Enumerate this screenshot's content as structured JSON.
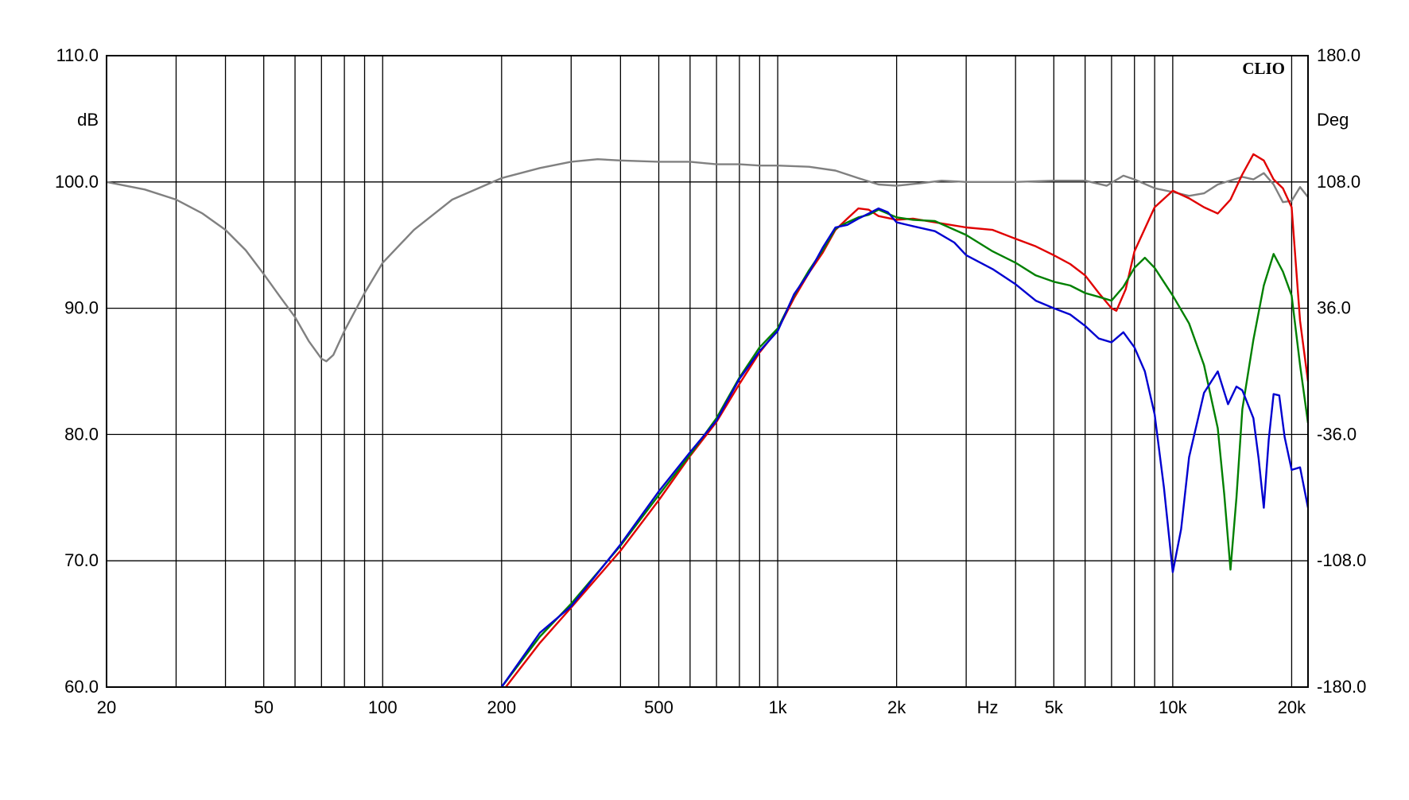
{
  "chart_data": {
    "type": "line",
    "brand": "CLIO",
    "x_axis": {
      "scale": "log",
      "range": [
        20,
        22000
      ],
      "unit_label": "Hz",
      "ticks": [
        {
          "value": 20,
          "label": "20"
        },
        {
          "value": 50,
          "label": "50"
        },
        {
          "value": 100,
          "label": "100"
        },
        {
          "value": 200,
          "label": "200"
        },
        {
          "value": 500,
          "label": "500"
        },
        {
          "value": 1000,
          "label": "1k"
        },
        {
          "value": 2000,
          "label": "2k"
        },
        {
          "value": 5000,
          "label": "5k"
        },
        {
          "value": 10000,
          "label": "10k"
        },
        {
          "value": 20000,
          "label": "20k"
        }
      ],
      "gridlines": [
        20,
        30,
        40,
        50,
        60,
        70,
        80,
        90,
        100,
        200,
        300,
        400,
        500,
        600,
        700,
        800,
        900,
        1000,
        2000,
        3000,
        4000,
        5000,
        6000,
        7000,
        8000,
        9000,
        10000,
        20000
      ]
    },
    "y_left": {
      "label": "dB",
      "range": [
        60,
        110
      ],
      "ticks": [
        {
          "value": 110,
          "label": "110.0"
        },
        {
          "value": 100,
          "label": "100.0"
        },
        {
          "value": 90,
          "label": "90.0"
        },
        {
          "value": 80,
          "label": "80.0"
        },
        {
          "value": 70,
          "label": "70.0"
        },
        {
          "value": 60,
          "label": "60.0"
        }
      ]
    },
    "y_right": {
      "label": "Deg",
      "range": [
        -180,
        180
      ],
      "ticks": [
        {
          "value": 180,
          "label": "180.0"
        },
        {
          "value": 108,
          "label": "108.0"
        },
        {
          "value": 36,
          "label": "36.0"
        },
        {
          "value": -36,
          "label": "-36.0"
        },
        {
          "value": -108,
          "label": "-108.0"
        },
        {
          "value": -180,
          "label": "-180.0"
        }
      ]
    },
    "grid": true,
    "series": [
      {
        "color": "#808080",
        "axis": "left",
        "points": [
          [
            20,
            100
          ],
          [
            25,
            99.4
          ],
          [
            30,
            98.6
          ],
          [
            35,
            97.5
          ],
          [
            40,
            96.2
          ],
          [
            45,
            94.6
          ],
          [
            50,
            92.7
          ],
          [
            55,
            90.9
          ],
          [
            60,
            89.3
          ],
          [
            65,
            87.4
          ],
          [
            70,
            86
          ],
          [
            72,
            85.8
          ],
          [
            75,
            86.3
          ],
          [
            80,
            88.2
          ],
          [
            90,
            91.2
          ],
          [
            100,
            93.6
          ],
          [
            120,
            96.2
          ],
          [
            150,
            98.6
          ],
          [
            200,
            100.3
          ],
          [
            250,
            101.1
          ],
          [
            300,
            101.6
          ],
          [
            350,
            101.8
          ],
          [
            400,
            101.7
          ],
          [
            500,
            101.6
          ],
          [
            600,
            101.6
          ],
          [
            700,
            101.4
          ],
          [
            800,
            101.4
          ],
          [
            900,
            101.3
          ],
          [
            1000,
            101.3
          ],
          [
            1200,
            101.2
          ],
          [
            1400,
            100.9
          ],
          [
            1600,
            100.3
          ],
          [
            1800,
            99.8
          ],
          [
            2000,
            99.7
          ],
          [
            2300,
            99.9
          ],
          [
            2600,
            100.1
          ],
          [
            3000,
            100
          ],
          [
            3500,
            100
          ],
          [
            4000,
            100
          ],
          [
            5000,
            100.1
          ],
          [
            6000,
            100.1
          ],
          [
            6800,
            99.7
          ],
          [
            7500,
            100.5
          ],
          [
            8000,
            100.2
          ],
          [
            9000,
            99.5
          ],
          [
            10000,
            99.2
          ],
          [
            11000,
            98.9
          ],
          [
            12000,
            99.1
          ],
          [
            13000,
            99.8
          ],
          [
            15000,
            100.4
          ],
          [
            16000,
            100.2
          ],
          [
            17000,
            100.7
          ],
          [
            18000,
            99.8
          ],
          [
            19000,
            98.4
          ],
          [
            20000,
            98.5
          ],
          [
            21000,
            99.6
          ],
          [
            22000,
            98.8
          ]
        ]
      },
      {
        "color": "#e00000",
        "axis": "left",
        "points": [
          [
            205,
            60
          ],
          [
            250,
            63.5
          ],
          [
            300,
            66.3
          ],
          [
            400,
            70.8
          ],
          [
            500,
            74.8
          ],
          [
            600,
            78.3
          ],
          [
            700,
            81
          ],
          [
            800,
            84
          ],
          [
            900,
            86.5
          ],
          [
            1000,
            88.3
          ],
          [
            1100,
            90.8
          ],
          [
            1200,
            92.8
          ],
          [
            1300,
            94.4
          ],
          [
            1400,
            96.2
          ],
          [
            1500,
            97.1
          ],
          [
            1600,
            97.9
          ],
          [
            1700,
            97.8
          ],
          [
            1800,
            97.3
          ],
          [
            2000,
            97
          ],
          [
            2200,
            97.1
          ],
          [
            2500,
            96.8
          ],
          [
            3000,
            96.4
          ],
          [
            3500,
            96.2
          ],
          [
            4000,
            95.5
          ],
          [
            4500,
            94.9
          ],
          [
            5000,
            94.2
          ],
          [
            5500,
            93.5
          ],
          [
            6000,
            92.6
          ],
          [
            6500,
            91.2
          ],
          [
            7000,
            90
          ],
          [
            7200,
            89.8
          ],
          [
            7600,
            91.5
          ],
          [
            8000,
            94.5
          ],
          [
            9000,
            98
          ],
          [
            10000,
            99.3
          ],
          [
            11000,
            98.7
          ],
          [
            12000,
            98
          ],
          [
            13000,
            97.5
          ],
          [
            14000,
            98.6
          ],
          [
            15000,
            100.6
          ],
          [
            16000,
            102.2
          ],
          [
            17000,
            101.7
          ],
          [
            18000,
            100.2
          ],
          [
            19000,
            99.5
          ],
          [
            20000,
            98
          ],
          [
            21000,
            89
          ],
          [
            22000,
            84.2
          ]
        ]
      },
      {
        "color": "#008000",
        "axis": "left",
        "points": [
          [
            200,
            60
          ],
          [
            250,
            64
          ],
          [
            300,
            66.6
          ],
          [
            400,
            71.2
          ],
          [
            500,
            75.2
          ],
          [
            600,
            78.4
          ],
          [
            700,
            81.3
          ],
          [
            800,
            84.5
          ],
          [
            900,
            86.9
          ],
          [
            1000,
            88.4
          ],
          [
            1100,
            91
          ],
          [
            1200,
            93
          ],
          [
            1300,
            94.6
          ],
          [
            1400,
            96.3
          ],
          [
            1500,
            96.8
          ],
          [
            1600,
            97.2
          ],
          [
            1700,
            97.4
          ],
          [
            1800,
            97.8
          ],
          [
            2000,
            97.2
          ],
          [
            2200,
            97
          ],
          [
            2500,
            96.9
          ],
          [
            3000,
            95.8
          ],
          [
            3500,
            94.5
          ],
          [
            4000,
            93.6
          ],
          [
            4500,
            92.6
          ],
          [
            5000,
            92.1
          ],
          [
            5500,
            91.8
          ],
          [
            6000,
            91.2
          ],
          [
            6500,
            90.9
          ],
          [
            7000,
            90.6
          ],
          [
            7500,
            91.7
          ],
          [
            8000,
            93.2
          ],
          [
            8500,
            94
          ],
          [
            9000,
            93.2
          ],
          [
            10000,
            91
          ],
          [
            11000,
            88.8
          ],
          [
            12000,
            85.5
          ],
          [
            13000,
            80.5
          ],
          [
            13500,
            75.3
          ],
          [
            14000,
            69.3
          ],
          [
            14500,
            75
          ],
          [
            15000,
            82
          ],
          [
            16000,
            87.5
          ],
          [
            17000,
            91.8
          ],
          [
            18000,
            94.3
          ],
          [
            19000,
            92.9
          ],
          [
            20000,
            91
          ],
          [
            21000,
            85.5
          ],
          [
            22000,
            80.9
          ]
        ]
      },
      {
        "color": "#0000d0",
        "axis": "left",
        "points": [
          [
            200,
            60
          ],
          [
            250,
            64.3
          ],
          [
            300,
            66.4
          ],
          [
            400,
            71.3
          ],
          [
            500,
            75.5
          ],
          [
            600,
            78.6
          ],
          [
            700,
            81.1
          ],
          [
            800,
            84.4
          ],
          [
            900,
            86.6
          ],
          [
            1000,
            88.2
          ],
          [
            1100,
            91.1
          ],
          [
            1200,
            92.8
          ],
          [
            1300,
            94.8
          ],
          [
            1400,
            96.4
          ],
          [
            1500,
            96.6
          ],
          [
            1600,
            97.1
          ],
          [
            1700,
            97.5
          ],
          [
            1800,
            97.9
          ],
          [
            1900,
            97.6
          ],
          [
            2000,
            96.8
          ],
          [
            2200,
            96.5
          ],
          [
            2500,
            96.1
          ],
          [
            2800,
            95.2
          ],
          [
            3000,
            94.2
          ],
          [
            3500,
            93.1
          ],
          [
            4000,
            91.9
          ],
          [
            4500,
            90.6
          ],
          [
            5000,
            90
          ],
          [
            5500,
            89.5
          ],
          [
            6000,
            88.6
          ],
          [
            6500,
            87.6
          ],
          [
            7000,
            87.3
          ],
          [
            7500,
            88.1
          ],
          [
            8000,
            86.9
          ],
          [
            8500,
            85
          ],
          [
            9000,
            81.6
          ],
          [
            9500,
            75.8
          ],
          [
            10000,
            69.1
          ],
          [
            10500,
            72.5
          ],
          [
            11000,
            78.2
          ],
          [
            12000,
            83.3
          ],
          [
            13000,
            85
          ],
          [
            13800,
            82.4
          ],
          [
            14500,
            83.8
          ],
          [
            15000,
            83.5
          ],
          [
            16000,
            81.3
          ],
          [
            16500,
            78.1
          ],
          [
            17000,
            74.2
          ],
          [
            17500,
            79.6
          ],
          [
            18000,
            83.2
          ],
          [
            18600,
            83.1
          ],
          [
            19200,
            79.8
          ],
          [
            20000,
            77.2
          ],
          [
            21000,
            77.4
          ],
          [
            22000,
            74.2
          ]
        ]
      }
    ]
  }
}
